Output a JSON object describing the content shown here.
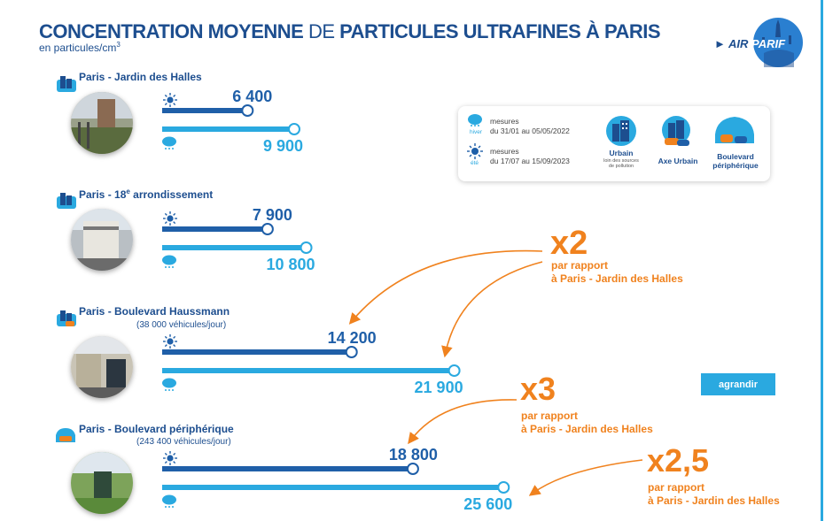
{
  "title": {
    "part1": "CONCENTRATION MOYENNE",
    "part2": " DE ",
    "part3": "PARTICULES ULTRAFINES À PARIS"
  },
  "subtitle": {
    "text": "en particules/cm",
    "sup": "3"
  },
  "logo": {
    "air": "AIR",
    "parif": "PARIF"
  },
  "legend": {
    "hiver_label": "hiver",
    "hiver_text1": "mesures",
    "hiver_text2": "du 31/01 au 05/05/2022",
    "ete_label": "été",
    "ete_text1": "mesures",
    "ete_text2": "du 17/07 au 15/09/2023",
    "categories": [
      {
        "label": "Urbain",
        "sub1": "loin des sources",
        "sub2": "de pollution"
      },
      {
        "label": "Axe Urbain",
        "sub1": "",
        "sub2": ""
      },
      {
        "label": "Boulevard",
        "label2": "périphérique",
        "sub1": "",
        "sub2": ""
      }
    ]
  },
  "stations": [
    {
      "name": "Paris - Jardin des Halles",
      "sup": "",
      "name_rest": "",
      "note": ""
    },
    {
      "name": "Paris - 18",
      "sup": "e",
      "name_rest": " arrondissement",
      "note": ""
    },
    {
      "name": "Paris - Boulevard Haussmann",
      "sup": "",
      "name_rest": "",
      "note": "(38 000 véhicules/jour)"
    },
    {
      "name": "Paris - Boulevard périphérique",
      "sup": "",
      "name_rest": "",
      "note": "(243 400 véhicules/jour)"
    }
  ],
  "multipliers": [
    {
      "value": "x2",
      "line1": "par rapport",
      "line2": "à Paris - Jardin des Halles"
    },
    {
      "value": "x3",
      "line1": "par rapport",
      "line2": "à Paris - Jardin des Halles"
    },
    {
      "value": "x2,5",
      "line1": "par rapport",
      "line2": "à Paris - Jardin des Halles"
    }
  ],
  "agrandir": "agrandir",
  "colors": {
    "navy": "#1d4e8f",
    "summer_bar": "#1f5fa8",
    "winter_bar": "#2aa9e0",
    "orange": "#f0821e"
  },
  "chart_data": {
    "type": "bar",
    "orientation": "horizontal",
    "title": "CONCENTRATION MOYENNE DE PARTICULES ULTRAFINES À PARIS",
    "unit": "en particules/cm³",
    "categories": [
      "Paris - Jardin des Halles",
      "Paris - 18e arrondissement",
      "Paris - Boulevard Haussmann",
      "Paris - Boulevard périphérique"
    ],
    "series": [
      {
        "name": "été",
        "values": [
          6400,
          7900,
          14200,
          18800
        ],
        "labels": [
          "6 400",
          "7 900",
          "14 200",
          "18 800"
        ]
      },
      {
        "name": "hiver",
        "values": [
          9900,
          10800,
          21900,
          25600
        ],
        "labels": [
          "9 900",
          "10 800",
          "21 900",
          "25 600"
        ]
      }
    ],
    "grid": false
  }
}
